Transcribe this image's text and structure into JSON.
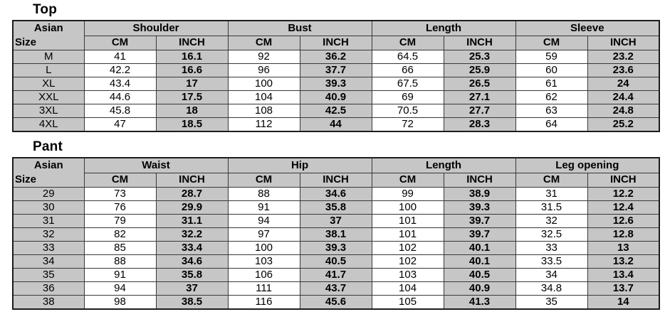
{
  "colors": {
    "cell_gray": "#c6c6c6",
    "cell_white": "#ffffff",
    "grid_border": "#383838",
    "outer_border": "#1c1c1c",
    "text": "#000000",
    "page_bg": "#ffffff"
  },
  "chart_data": [
    {
      "type": "table",
      "title": "Top",
      "corner_header": {
        "line1": "Asian",
        "line2": "Size"
      },
      "column_groups": [
        "Shoulder",
        "Bust",
        "Length",
        "Sleeve"
      ],
      "unit_labels": {
        "cm": "CM",
        "inch": "INCH"
      },
      "row_header_label": "Asian Size",
      "rows": [
        [
          "M",
          "41",
          "16.1",
          "92",
          "36.2",
          "64.5",
          "25.3",
          "59",
          "23.2"
        ],
        [
          "L",
          "42.2",
          "16.6",
          "96",
          "37.7",
          "66",
          "25.9",
          "60",
          "23.6"
        ],
        [
          "XL",
          "43.4",
          "17",
          "100",
          "39.3",
          "67.5",
          "26.5",
          "61",
          "24"
        ],
        [
          "XXL",
          "44.6",
          "17.5",
          "104",
          "40.9",
          "69",
          "27.1",
          "62",
          "24.4"
        ],
        [
          "3XL",
          "45.8",
          "18",
          "108",
          "42.5",
          "70.5",
          "27.7",
          "63",
          "24.8"
        ],
        [
          "4XL",
          "47",
          "18.5",
          "112",
          "44",
          "72",
          "28.3",
          "64",
          "25.2"
        ]
      ]
    },
    {
      "type": "table",
      "title": "Pant",
      "corner_header": {
        "line1": "Asian",
        "line2": "Size"
      },
      "column_groups": [
        "Waist",
        "Hip",
        "Length",
        "Leg opening"
      ],
      "unit_labels": {
        "cm": "CM",
        "inch": "INCH"
      },
      "row_header_label": "Asian Size",
      "rows": [
        [
          "29",
          "73",
          "28.7",
          "88",
          "34.6",
          "99",
          "38.9",
          "31",
          "12.2"
        ],
        [
          "30",
          "76",
          "29.9",
          "91",
          "35.8",
          "100",
          "39.3",
          "31.5",
          "12.4"
        ],
        [
          "31",
          "79",
          "31.1",
          "94",
          "37",
          "101",
          "39.7",
          "32",
          "12.6"
        ],
        [
          "32",
          "82",
          "32.2",
          "97",
          "38.1",
          "101",
          "39.7",
          "32.5",
          "12.8"
        ],
        [
          "33",
          "85",
          "33.4",
          "100",
          "39.3",
          "102",
          "40.1",
          "33",
          "13"
        ],
        [
          "34",
          "88",
          "34.6",
          "103",
          "40.5",
          "102",
          "40.1",
          "33.5",
          "13.2"
        ],
        [
          "35",
          "91",
          "35.8",
          "106",
          "41.7",
          "103",
          "40.5",
          "34",
          "13.4"
        ],
        [
          "36",
          "94",
          "37",
          "111",
          "43.7",
          "104",
          "40.9",
          "34.8",
          "13.7"
        ],
        [
          "38",
          "98",
          "38.5",
          "116",
          "45.6",
          "105",
          "41.3",
          "35",
          "14"
        ]
      ]
    }
  ]
}
